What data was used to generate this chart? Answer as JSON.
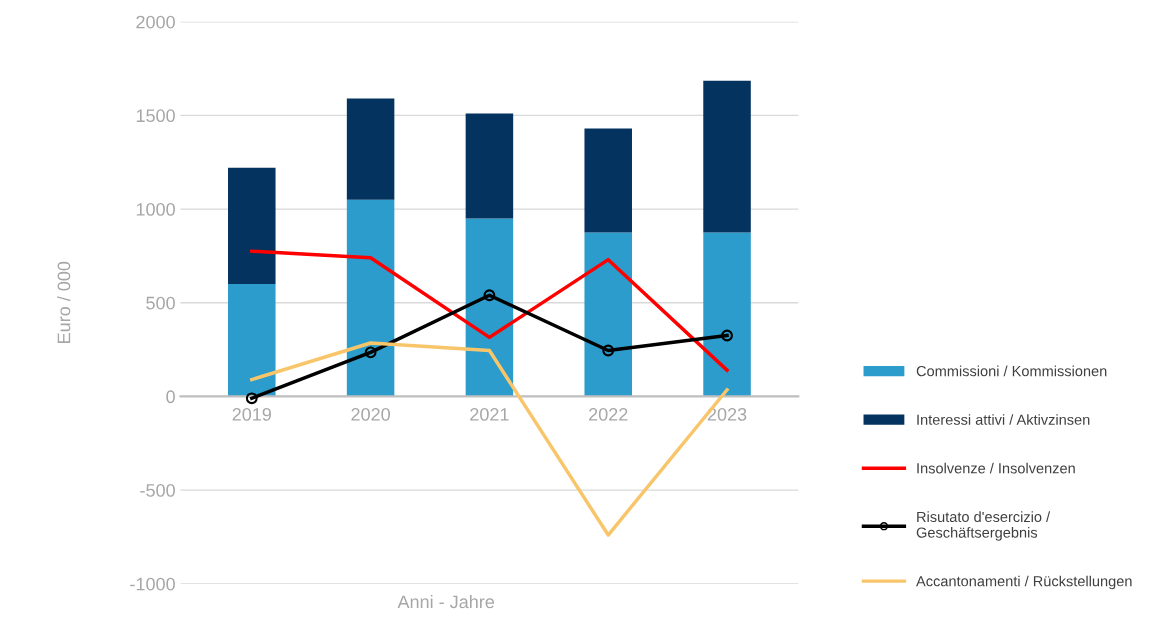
{
  "chart_data": {
    "type": "bar",
    "stacked": true,
    "xlabel": "Anni - Jahre",
    "ylabel": "Euro / 000",
    "categories": [
      "2019",
      "2020",
      "2021",
      "2022",
      "2023"
    ],
    "series": [
      {
        "name": "Commissioni / Kommissionen",
        "color": "#2b9ccb",
        "values": [
          600,
          1050,
          950,
          875,
          875
        ]
      },
      {
        "name": "Interessi attivi / Aktivzinsen",
        "color": "#04335f",
        "values": [
          620,
          540,
          560,
          555,
          810
        ]
      },
      {
        "name": "Insolvenze / Insolvenzen",
        "type": "line",
        "color": "#ff0000",
        "marker": "none",
        "values": [
          775,
          740,
          315,
          730,
          140
        ]
      },
      {
        "name": "Risutato d'esercizio / Geschäftsergebnis",
        "type": "line",
        "color": "#000000",
        "marker": "circle",
        "values": [
          -10,
          235,
          540,
          245,
          325
        ]
      },
      {
        "name": "Accantonamenti / Rückstellungen",
        "type": "line",
        "color": "#f9c56a",
        "marker": "none",
        "values": [
          90,
          285,
          245,
          -740,
          35
        ]
      }
    ],
    "ylim": [
      -1000,
      2000
    ],
    "yticks": [
      -1000,
      -500,
      0,
      500,
      1000,
      1500,
      2000
    ],
    "grid": "y",
    "legend": "right",
    "line_style": "solid"
  }
}
